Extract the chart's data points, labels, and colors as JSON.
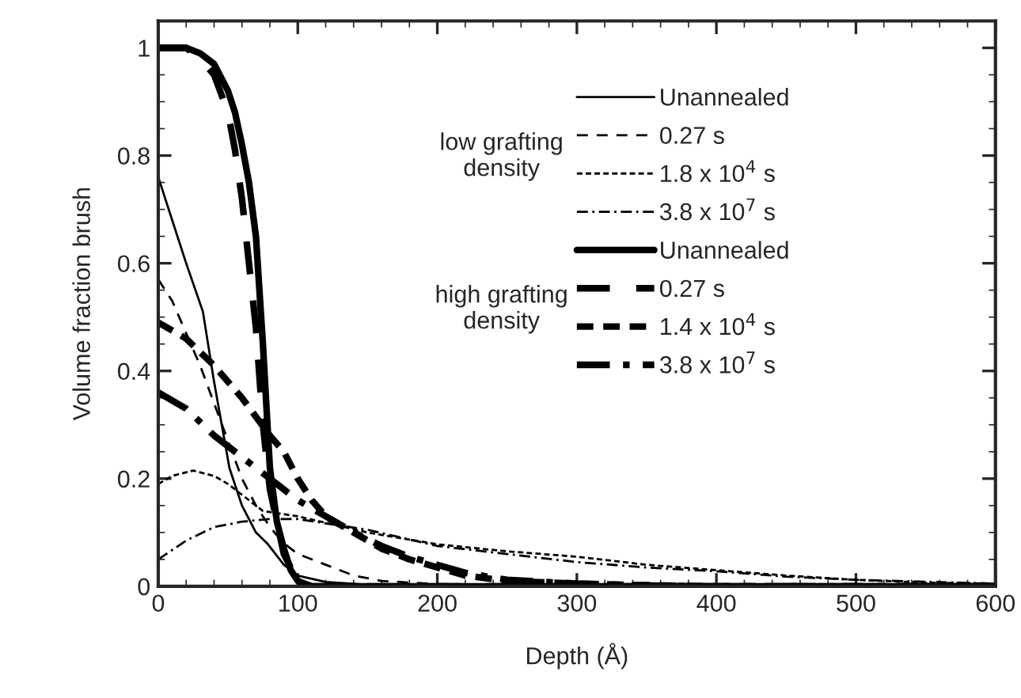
{
  "chart_data": {
    "type": "line",
    "xlabel": "Depth (Å)",
    "ylabel": "Volume fraction brush",
    "xlim": [
      0,
      600
    ],
    "xticks": [
      0,
      100,
      200,
      300,
      400,
      500,
      600
    ],
    "ylim": [
      0,
      1.05
    ],
    "yticks": [
      0,
      0.2,
      0.4,
      0.6,
      0.8,
      1
    ],
    "grid": false,
    "legend": "top right",
    "marker": "none",
    "annotations": [
      "low grafting\ndensity",
      "high grafting\ndensity"
    ],
    "series": [
      {
        "name": "Unannealed",
        "color": "#000000",
        "line_style": "solid",
        "x": [
          0,
          10,
          20,
          32,
          40,
          51,
          60,
          70,
          78,
          90,
          100,
          120,
          150,
          200,
          600
        ],
        "values": [
          0.76,
          0.68,
          0.6,
          0.51,
          0.38,
          0.22,
          0.15,
          0.1,
          0.08,
          0.04,
          0.02,
          0.008,
          0.003,
          0.001,
          0
        ]
      },
      {
        "name": "0.27 s",
        "color": "#000000",
        "line_style": "dashed",
        "x": [
          0,
          10,
          20,
          30,
          40,
          50,
          60,
          70,
          80,
          90,
          100,
          120,
          140,
          160,
          200,
          600
        ],
        "values": [
          0.57,
          0.53,
          0.47,
          0.41,
          0.34,
          0.27,
          0.2,
          0.15,
          0.11,
          0.08,
          0.06,
          0.04,
          0.02,
          0.01,
          0.004,
          0
        ]
      },
      {
        "name": "1.8 x 10$^{4}$ s",
        "color": "#000000",
        "line_style": "dotted",
        "x": [
          0,
          10,
          25,
          40,
          50,
          75,
          100,
          150,
          200,
          250,
          300,
          350,
          400,
          450,
          500,
          550,
          600
        ],
        "values": [
          0.19,
          0.205,
          0.215,
          0.205,
          0.19,
          0.14,
          0.13,
          0.1,
          0.078,
          0.065,
          0.055,
          0.04,
          0.03,
          0.02,
          0.012,
          0.007,
          0.005
        ]
      },
      {
        "name": "3.8 x 10$^{7}$ s",
        "color": "#000000",
        "line_style": "dashdot",
        "x": [
          0,
          20,
          40,
          60,
          80,
          100,
          150,
          200,
          250,
          300,
          350,
          400,
          450,
          500,
          600
        ],
        "values": [
          0.05,
          0.085,
          0.11,
          0.12,
          0.125,
          0.125,
          0.105,
          0.075,
          0.06,
          0.045,
          0.035,
          0.028,
          0.018,
          0.012,
          0.005
        ]
      },
      {
        "name": "Unannealed",
        "color": "#000000",
        "line_style": "solid",
        "x": [
          0,
          20,
          30,
          40,
          50,
          55,
          60,
          65,
          70,
          75,
          80,
          85,
          90,
          95,
          100,
          110,
          600
        ],
        "values": [
          1,
          1,
          0.99,
          0.97,
          0.92,
          0.88,
          0.82,
          0.75,
          0.65,
          0.45,
          0.22,
          0.12,
          0.07,
          0.03,
          0.01,
          0,
          0
        ]
      },
      {
        "name": "0.27 s",
        "color": "#000000",
        "line_style": "dashed",
        "x": [
          0,
          20,
          30,
          40,
          50,
          55,
          60,
          65,
          70,
          75,
          80,
          90,
          100,
          110,
          600
        ],
        "values": [
          1,
          1,
          0.98,
          0.95,
          0.88,
          0.81,
          0.72,
          0.6,
          0.48,
          0.3,
          0.18,
          0.06,
          0.01,
          0,
          0
        ]
      },
      {
        "name": "1.4 x 10$^{4}$ s",
        "color": "#000000",
        "line_style": "dotted",
        "x": [
          0,
          20,
          40,
          60,
          80,
          90,
          100,
          110,
          120,
          140,
          160,
          180,
          200,
          220,
          250,
          300,
          350,
          400,
          600
        ],
        "values": [
          0.49,
          0.46,
          0.41,
          0.35,
          0.28,
          0.25,
          0.2,
          0.16,
          0.13,
          0.1,
          0.07,
          0.05,
          0.035,
          0.02,
          0.01,
          0.005,
          0.002,
          0,
          0
        ]
      },
      {
        "name": "3.8 x 10$^{7}$ s",
        "color": "#000000",
        "line_style": "dashdot",
        "x": [
          0,
          20,
          40,
          60,
          80,
          100,
          120,
          140,
          160,
          180,
          200,
          220,
          250,
          300,
          340,
          400,
          600
        ],
        "values": [
          0.36,
          0.33,
          0.28,
          0.24,
          0.2,
          0.16,
          0.13,
          0.1,
          0.075,
          0.055,
          0.04,
          0.025,
          0.012,
          0.005,
          0.002,
          0,
          0
        ]
      }
    ]
  }
}
